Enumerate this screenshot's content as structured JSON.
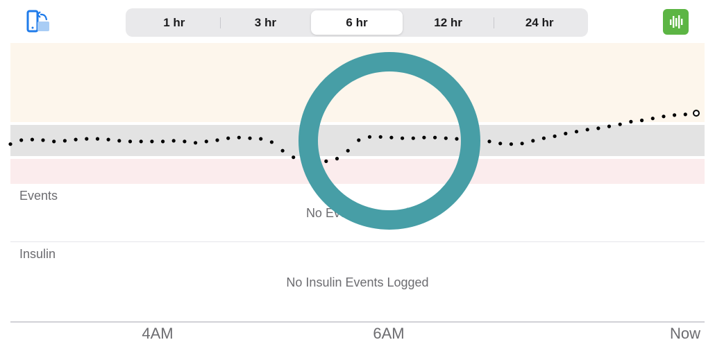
{
  "toolbar": {
    "rotate_icon": "phone-rotate-icon",
    "stats_icon": "bar-chart-icon",
    "ranges": [
      "1 hr",
      "3 hr",
      "6 hr",
      "12 hr",
      "24 hr"
    ],
    "selected_range": "6 hr"
  },
  "colors": {
    "high_zone": "#fdf6ec",
    "target_zone": "#e3e3e3",
    "low_zone": "#fbeced",
    "accent_green": "#5cb544",
    "annotation_ring": "#479ea6"
  },
  "events": {
    "label": "Events",
    "empty": "No Events Logged"
  },
  "insulin": {
    "label": "Insulin",
    "empty": "No Insulin Events Logged"
  },
  "axis": {
    "labels": [
      "4AM",
      "6AM",
      "Now"
    ]
  },
  "chart_data": {
    "type": "scatter",
    "x_range": [
      0,
      63
    ],
    "y_range": [
      -4,
      4
    ],
    "zones": [
      "high",
      "target",
      "low"
    ],
    "x": [
      0,
      1,
      2,
      3,
      4,
      5,
      6,
      7,
      8,
      9,
      10,
      11,
      12,
      13,
      14,
      15,
      16,
      17,
      18,
      19,
      20,
      21,
      22,
      23,
      24,
      25,
      26,
      27,
      28,
      29,
      30,
      31,
      32,
      33,
      34,
      35,
      36,
      37,
      38,
      39,
      40,
      41,
      42,
      43,
      44,
      45,
      46,
      47,
      48,
      49,
      50,
      51,
      52,
      53,
      54,
      55,
      56,
      57,
      58,
      59,
      60,
      61,
      62,
      63
    ],
    "values": [
      -0.6,
      0,
      0.1,
      0,
      -0.2,
      -0.1,
      0.1,
      0.2,
      0.2,
      0.1,
      -0.1,
      -0.2,
      -0.2,
      -0.2,
      -0.2,
      -0.1,
      -0.2,
      -0.4,
      -0.2,
      0,
      0.3,
      0.4,
      0.3,
      0.2,
      -0.3,
      -1.6,
      -2.6,
      -3,
      -3.4,
      -3.2,
      -2.8,
      -1.6,
      0,
      0.5,
      0.5,
      0.4,
      0.3,
      0.3,
      0.4,
      0.4,
      0.3,
      0.2,
      0.1,
      -0.1,
      -0.2,
      -0.5,
      -0.6,
      -0.5,
      -0.1,
      0.3,
      0.6,
      1,
      1.3,
      1.6,
      1.8,
      2.1,
      2.4,
      2.8,
      3,
      3.3,
      3.6,
      3.8,
      3.9,
      4.1
    ],
    "latest_point": "open"
  }
}
